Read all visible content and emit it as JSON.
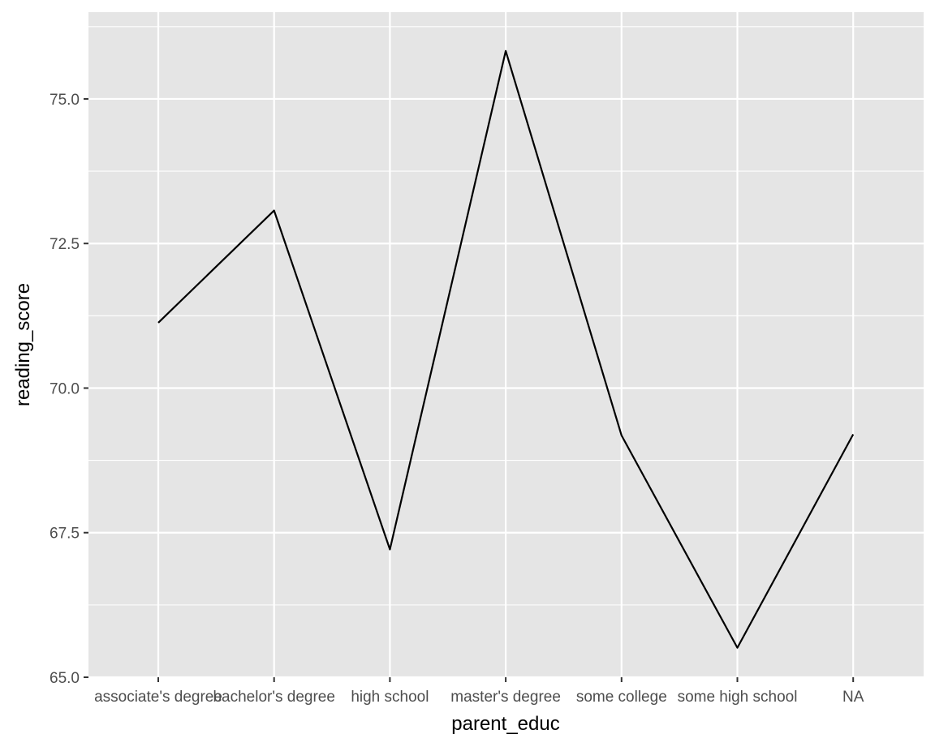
{
  "chart_data": {
    "type": "line",
    "categories": [
      "associate's degree",
      "bachelor's degree",
      "high school",
      "master's degree",
      "some college",
      "some high school",
      "NA"
    ],
    "values": [
      71.13,
      73.07,
      67.21,
      75.83,
      69.18,
      65.51,
      69.2
    ],
    "xlabel": "parent_educ",
    "ylabel": "reading_score",
    "ylim": [
      65.0,
      76.5
    ],
    "y_ticks": [
      "65.0",
      "67.5",
      "70.0",
      "72.5",
      "75.0"
    ],
    "grid": true,
    "legend": "none",
    "colors": {
      "panel": "#e5e5e5",
      "grid": "#ffffff",
      "line": "#000000",
      "tick_text": "#4d4d4d"
    }
  }
}
